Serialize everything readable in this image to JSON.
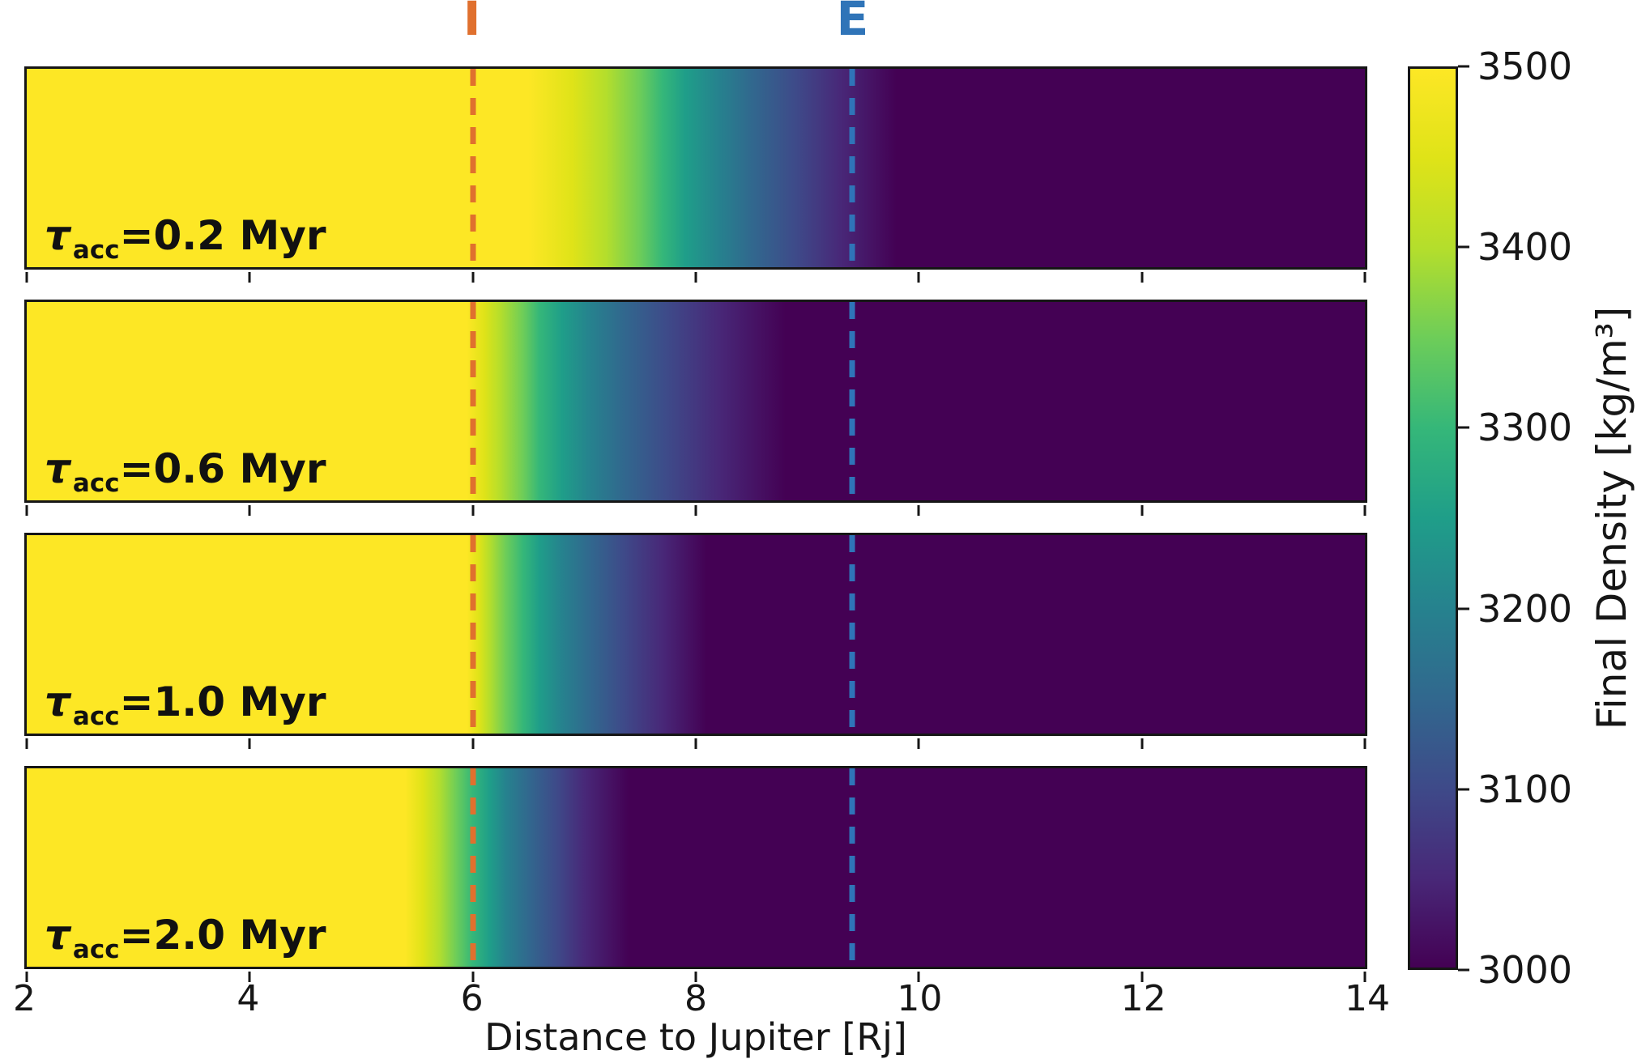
{
  "figure": {
    "x_range": [
      2,
      14
    ],
    "x_ticks": [
      2,
      4,
      6,
      8,
      10,
      12,
      14
    ],
    "xlabel": "Distance to Jupiter [Rj]",
    "markers": [
      {
        "label": "I",
        "x": 6.0,
        "color": "#e0702e"
      },
      {
        "label": "E",
        "x": 9.4,
        "color": "#2f74b8"
      }
    ],
    "panels": [
      {
        "label_tau": "τ",
        "label_sub": "acc",
        "label_rest": "=0.2 Myr",
        "gradient": [
          "#fde725 0%",
          "#fde725 37.5%",
          "#dfe318 40.8%",
          "#b4de2c 43.3%",
          "#6dcd59 45.8%",
          "#35b779 47.5%",
          "#1f9e89 49.2%",
          "#26828e 51.7%",
          "#31688e 54.2%",
          "#3e4a89 57.5%",
          "#482878 60.8%",
          "#440154 65%",
          "#440154 100%"
        ]
      },
      {
        "label_tau": "τ",
        "label_sub": "acc",
        "label_rest": "=0.6 Myr",
        "gradient": [
          "#fde725 0%",
          "#fde725 32.9%",
          "#dfe318 34.2%",
          "#b4de2c 35.4%",
          "#6dcd59 37.1%",
          "#35b779 38.3%",
          "#1f9e89 40%",
          "#26828e 42.1%",
          "#31688e 44.6%",
          "#3e4a89 47.9%",
          "#482878 51.7%",
          "#440154 56.7%",
          "#440154 100%"
        ]
      },
      {
        "label_tau": "τ",
        "label_sub": "acc",
        "label_rest": "=1.0 Myr",
        "gradient": [
          "#fde725 0%",
          "#fde725 32.9%",
          "#dfe318 33.8%",
          "#b4de2c 34.6%",
          "#6dcd59 35.8%",
          "#35b779 37.1%",
          "#1f9e89 38.3%",
          "#26828e 40%",
          "#31688e 42.1%",
          "#3e4a89 44.6%",
          "#482878 47.5%",
          "#440154 50.8%",
          "#440154 100%"
        ]
      },
      {
        "label_tau": "τ",
        "label_sub": "acc",
        "label_rest": "=2.0 Myr",
        "gradient": [
          "#fde725 0%",
          "#fde725 28.3%",
          "#dfe318 29.6%",
          "#b4de2c 30.8%",
          "#6dcd59 32.1%",
          "#35b779 33.3%",
          "#1f9e89 34.6%",
          "#26828e 35.8%",
          "#31688e 37.5%",
          "#3e4a89 39.6%",
          "#482878 41.7%",
          "#440154 45%",
          "#440154 100%"
        ]
      }
    ],
    "colorbar": {
      "label": "Final Density [kg/m³]",
      "ticks": [
        3500,
        3400,
        3300,
        3200,
        3100,
        3000
      ],
      "vmin": 3000,
      "vmax": 3500,
      "gradient": [
        "#fde725 0%",
        "#dfe318 10%",
        "#b4de2c 20%",
        "#6dcd59 30%",
        "#35b779 40%",
        "#1f9e89 50%",
        "#26828e 60%",
        "#31688e 70%",
        "#3e4a89 80%",
        "#482878 90%",
        "#440154 100%"
      ]
    }
  },
  "chart_data": {
    "type": "heatmap",
    "title": "",
    "xlabel": "Distance to Jupiter [Rj]",
    "x_range": [
      2,
      14
    ],
    "x_ticks": [
      2,
      4,
      6,
      8,
      10,
      12,
      14
    ],
    "colormap": "viridis",
    "colorbar_label": "Final Density [kg/m³]",
    "color_range": [
      3000,
      3500
    ],
    "grid": false,
    "vertical_lines": [
      {
        "label": "I",
        "x": 6.0,
        "style": "dashed",
        "color": "#e0702e"
      },
      {
        "label": "E",
        "x": 9.4,
        "style": "dashed",
        "color": "#2f74b8"
      }
    ],
    "x_samples": [
      2,
      3,
      4,
      5,
      5.5,
      6,
      6.5,
      7,
      7.5,
      8,
      8.5,
      9,
      9.5,
      10,
      11,
      12,
      13,
      14
    ],
    "series": [
      {
        "name": "τ_acc=0.2 Myr",
        "values": [
          3500,
          3500,
          3500,
          3500,
          3500,
          3500,
          3500,
          3440,
          3340,
          3240,
          3140,
          3080,
          3030,
          3000,
          3000,
          3000,
          3000,
          3000
        ]
      },
      {
        "name": "τ_acc=0.6 Myr",
        "values": [
          3500,
          3500,
          3500,
          3500,
          3500,
          3480,
          3330,
          3200,
          3120,
          3060,
          3010,
          3000,
          3000,
          3000,
          3000,
          3000,
          3000,
          3000
        ]
      },
      {
        "name": "τ_acc=1.0 Myr",
        "values": [
          3500,
          3500,
          3500,
          3500,
          3500,
          3490,
          3290,
          3160,
          3070,
          3010,
          3000,
          3000,
          3000,
          3000,
          3000,
          3000,
          3000,
          3000
        ]
      },
      {
        "name": "τ_acc=2.0 Myr",
        "values": [
          3500,
          3500,
          3500,
          3500,
          3490,
          3280,
          3120,
          3020,
          3000,
          3000,
          3000,
          3000,
          3000,
          3000,
          3000,
          3000,
          3000,
          3000
        ]
      }
    ]
  }
}
